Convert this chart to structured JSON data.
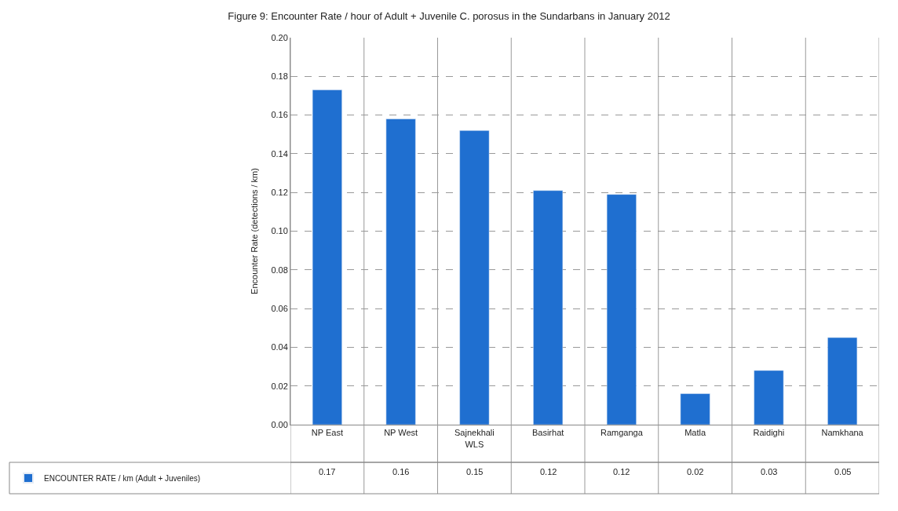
{
  "chart_data": {
    "type": "bar",
    "title": "Figure 9: Encounter Rate / hour of Adult + Juvenile C. porosus in the Sundarbans in January 2012",
    "ylabel": "Encounter Rate (detections / km)",
    "categories": [
      "NP East",
      "NP West",
      "Sajnekhali WLS",
      "Basirhat",
      "Ramganga",
      "Matla",
      "Raidighi",
      "Namkhana"
    ],
    "series": [
      {
        "name": "ENCOUNTER RATE / km (Adult + Juveniles)",
        "color": "#1f6fd0",
        "values": [
          0.173,
          0.158,
          0.152,
          0.121,
          0.119,
          0.016,
          0.028,
          0.045
        ],
        "value_labels": [
          "0.17",
          "0.16",
          "0.15",
          "0.12",
          "0.12",
          "0.02",
          "0.03",
          "0.05"
        ]
      }
    ],
    "ylim": [
      0,
      0.2
    ],
    "yticks": [
      "0.00",
      "0.02",
      "0.04",
      "0.06",
      "0.08",
      "0.10",
      "0.12",
      "0.14",
      "0.16",
      "0.18",
      "0.20"
    ],
    "grid": true,
    "legend": "bottom left"
  }
}
